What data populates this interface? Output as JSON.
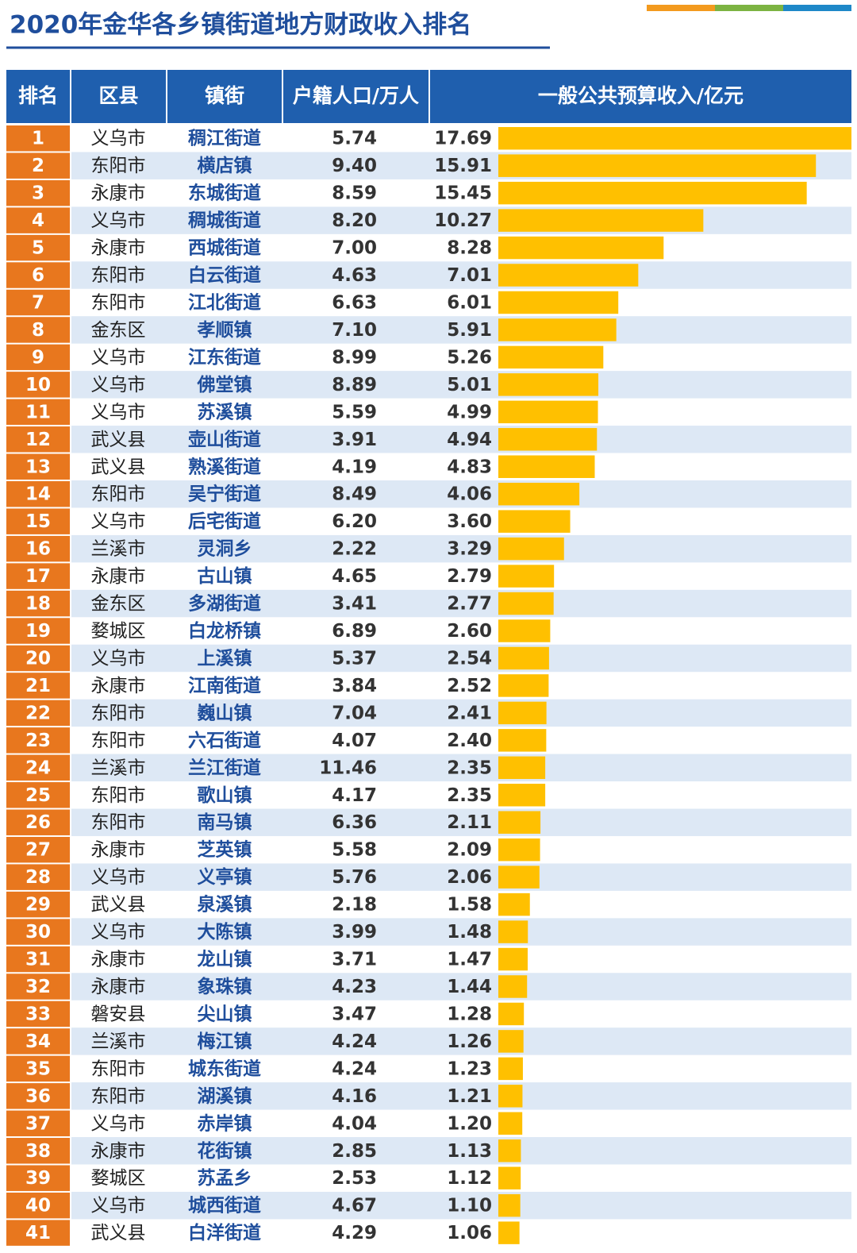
{
  "title": "2020年金华各乡镇街道地方财政收入排名",
  "table": {
    "columns": [
      "排名",
      "区县",
      "镇街",
      "户籍人口/万人",
      "一般公共预算收入/亿元"
    ],
    "rows": [
      [
        "1",
        "义乌市",
        "稠江街道",
        "5.74"
      ],
      [
        "2",
        "东阳市",
        "横店镇",
        "9.40"
      ],
      [
        "3",
        "永康市",
        "东城街道",
        "8.59"
      ],
      [
        "4",
        "义乌市",
        "稠城街道",
        "8.20"
      ],
      [
        "5",
        "永康市",
        "西城街道",
        "7.00"
      ],
      [
        "6",
        "东阳市",
        "白云街道",
        "4.63"
      ],
      [
        "7",
        "东阳市",
        "江北街道",
        "6.63"
      ],
      [
        "8",
        "金东区",
        "孝顺镇",
        "7.10"
      ],
      [
        "9",
        "义乌市",
        "江东街道",
        "8.99"
      ],
      [
        "10",
        "义乌市",
        "佛堂镇",
        "8.89"
      ],
      [
        "11",
        "义乌市",
        "苏溪镇",
        "5.59"
      ],
      [
        "12",
        "武义县",
        "壶山街道",
        "3.91"
      ],
      [
        "13",
        "武义县",
        "熟溪街道",
        "4.19"
      ],
      [
        "14",
        "东阳市",
        "吴宁街道",
        "8.49"
      ],
      [
        "15",
        "义乌市",
        "后宅街道",
        "6.20"
      ],
      [
        "16",
        "兰溪市",
        "灵洞乡",
        "2.22"
      ],
      [
        "17",
        "永康市",
        "古山镇",
        "4.65"
      ],
      [
        "18",
        "金东区",
        "多湖街道",
        "3.41"
      ],
      [
        "19",
        "婺城区",
        "白龙桥镇",
        "6.89"
      ],
      [
        "20",
        "义乌市",
        "上溪镇",
        "5.37"
      ],
      [
        "21",
        "永康市",
        "江南街道",
        "3.84"
      ],
      [
        "22",
        "东阳市",
        "巍山镇",
        "7.04"
      ],
      [
        "23",
        "东阳市",
        "六石街道",
        "4.07"
      ],
      [
        "24",
        "兰溪市",
        "兰江街道",
        "11.46"
      ],
      [
        "25",
        "东阳市",
        "歌山镇",
        "4.17"
      ],
      [
        "26",
        "东阳市",
        "南马镇",
        "6.36"
      ],
      [
        "27",
        "永康市",
        "芝英镇",
        "5.58"
      ],
      [
        "28",
        "义乌市",
        "义亭镇",
        "5.76"
      ],
      [
        "29",
        "武义县",
        "泉溪镇",
        "2.18"
      ],
      [
        "30",
        "义乌市",
        "大陈镇",
        "3.99"
      ],
      [
        "31",
        "永康市",
        "龙山镇",
        "3.71"
      ],
      [
        "32",
        "永康市",
        "象珠镇",
        "4.23"
      ],
      [
        "33",
        "磐安县",
        "尖山镇",
        "3.47"
      ],
      [
        "34",
        "兰溪市",
        "梅江镇",
        "4.24"
      ],
      [
        "35",
        "东阳市",
        "城东街道",
        "4.24"
      ],
      [
        "36",
        "东阳市",
        "湖溪镇",
        "4.16"
      ],
      [
        "37",
        "义乌市",
        "赤岸镇",
        "4.04"
      ],
      [
        "38",
        "永康市",
        "花街镇",
        "2.85"
      ],
      [
        "39",
        "婺城区",
        "苏孟乡",
        "2.53"
      ],
      [
        "40",
        "义乌市",
        "城西街道",
        "4.67"
      ],
      [
        "41",
        "武义县",
        "白洋街道",
        "4.29"
      ]
    ],
    "revenue": {
      "color": "#ffc000",
      "values": [
        17.69,
        15.91,
        15.45,
        10.27,
        8.28,
        7.01,
        6.01,
        5.91,
        5.26,
        5.01,
        4.99,
        4.94,
        4.83,
        4.06,
        3.6,
        3.29,
        2.79,
        2.77,
        2.6,
        2.54,
        2.52,
        2.41,
        2.4,
        2.35,
        2.35,
        2.11,
        2.09,
        2.06,
        1.58,
        1.48,
        1.47,
        1.44,
        1.28,
        1.26,
        1.23,
        1.21,
        1.2,
        1.13,
        1.12,
        1.1,
        1.06
      ],
      "value_labels": [
        "17.69",
        "15.91",
        "15.45",
        "10.27",
        "8.28",
        "7.01",
        "6.01",
        "5.91",
        "5.26",
        "5.01",
        "4.99",
        "4.94",
        "4.83",
        "4.06",
        "3.60",
        "3.29",
        "2.79",
        "2.77",
        "2.60",
        "2.54",
        "2.52",
        "2.41",
        "2.40",
        "2.35",
        "2.35",
        "2.11",
        "2.09",
        "2.06",
        "1.58",
        "1.48",
        "1.47",
        "1.44",
        "1.28",
        "1.26",
        "1.23",
        "1.21",
        "1.20",
        "1.13",
        "1.12",
        "1.10",
        "1.06"
      ]
    }
  }
}
